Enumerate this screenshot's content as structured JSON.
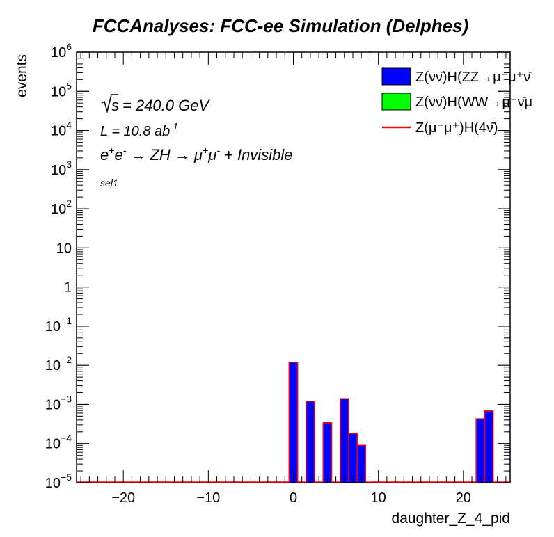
{
  "chart_data": {
    "type": "bar",
    "title": "FCCAnalyses: FCC-ee Simulation (Delphes)",
    "xlabel": "daughter_Z_4_pid",
    "ylabel": "events",
    "xlim": [
      -25.5,
      25.5
    ],
    "ylim": [
      1e-05,
      1000000.0
    ],
    "yscale": "log",
    "grid": false,
    "legend_position": "top-right",
    "bin_width": 1,
    "x_ticks": [
      -20,
      -10,
      0,
      10,
      20
    ],
    "x_tick_labels": [
      "−20",
      "−10",
      "0",
      "10",
      "20"
    ],
    "y_ticks": [
      {
        "value": 1000000.0,
        "base": "10",
        "exp": "6"
      },
      {
        "value": 100000.0,
        "base": "10",
        "exp": "5"
      },
      {
        "value": 10000.0,
        "base": "10",
        "exp": "4"
      },
      {
        "value": 1000.0,
        "base": "10",
        "exp": "3"
      },
      {
        "value": 100.0,
        "base": "10",
        "exp": "2"
      },
      {
        "value": 10,
        "base": "10",
        "exp": ""
      },
      {
        "value": 1,
        "base": "1",
        "exp": ""
      },
      {
        "value": 0.1,
        "base": "10",
        "exp": "−1"
      },
      {
        "value": 0.01,
        "base": "10",
        "exp": "−2"
      },
      {
        "value": 0.001,
        "base": "10",
        "exp": "−3"
      },
      {
        "value": 0.0001,
        "base": "10",
        "exp": "−4"
      },
      {
        "value": 1e-05,
        "base": "10",
        "exp": "−5"
      }
    ],
    "annotations": {
      "sqrt_s": "= 240.0 GeV",
      "lumi_prefix": "L = 10.8 ab",
      "lumi_exp": "-1",
      "process_pre": "e",
      "process_mid": "→ ZH → μ",
      "process_post": "+ Invisible",
      "selection": "sel1"
    },
    "series": [
      {
        "name": "Z(νν̄)H(ZZ→μ⁻μ⁺ν̄",
        "color": "#0000ff",
        "edge_color": "#000000",
        "stacked": true,
        "bins": [
          {
            "x": 0,
            "value": 0.012
          },
          {
            "x": 2,
            "value": 0.0012
          },
          {
            "x": 4,
            "value": 0.00034
          },
          {
            "x": 6,
            "value": 0.0014
          },
          {
            "x": 7,
            "value": 0.00018
          },
          {
            "x": 8,
            "value": 9e-05
          },
          {
            "x": 22,
            "value": 0.00043
          },
          {
            "x": 23,
            "value": 0.00068
          }
        ]
      },
      {
        "name": "Z(νν̄)H(WW→μ⁻ν̄μ",
        "color": "#00ff00",
        "edge_color": "#000000",
        "stacked": true,
        "bins": []
      },
      {
        "name": "Z(μ⁻μ⁺)H(4ν̄)",
        "color": "#ff0000",
        "line": true,
        "bins": []
      }
    ]
  }
}
